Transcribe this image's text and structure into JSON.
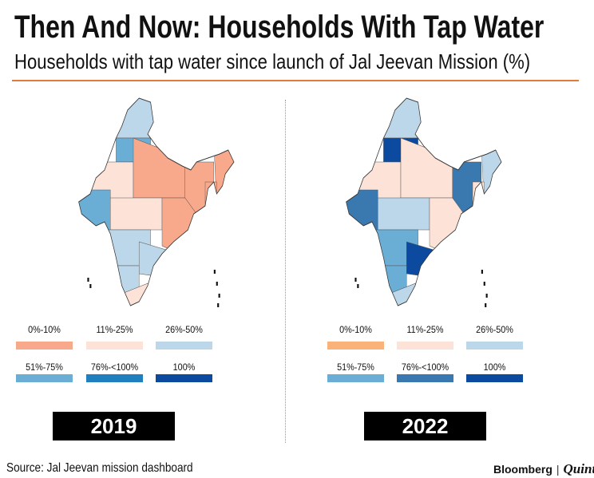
{
  "header": {
    "title": "Then And Now: Households With Tap Water",
    "subtitle": "Households with tap water since launch of Jal Jeevan Mission (%)"
  },
  "legend_labels": [
    "0%-10%",
    "11%-25%",
    "26%-50%",
    "51%-75%",
    "76%-<100%",
    "100%"
  ],
  "maps": [
    {
      "year": "2019",
      "legend_colors": [
        "#f9a98b",
        "#fde3d7",
        "#bcd6ea",
        "#6aaed6",
        "#1f7fbf",
        "#0b4a9e"
      ],
      "region_categories": [
        2,
        3,
        1,
        3,
        0,
        1,
        0,
        2,
        0,
        2,
        2,
        1,
        0,
        0
      ]
    },
    {
      "year": "2022",
      "legend_colors": [
        "#f8b27a",
        "#fde3d7",
        "#bcd6ea",
        "#6aaed6",
        "#3a78b0",
        "#0b4a9e"
      ],
      "region_categories": [
        2,
        5,
        1,
        4,
        1,
        2,
        4,
        3,
        1,
        5,
        3,
        2,
        2,
        1
      ]
    }
  ],
  "footer": {
    "source": "Source: Jal Jeevan mission dashboard",
    "brand_bloomberg": "Bloomberg",
    "brand_sep": "|",
    "brand_quint": "Quint"
  },
  "colors": {
    "accent_rule": "#e07b3c",
    "year_box": "#000000"
  }
}
